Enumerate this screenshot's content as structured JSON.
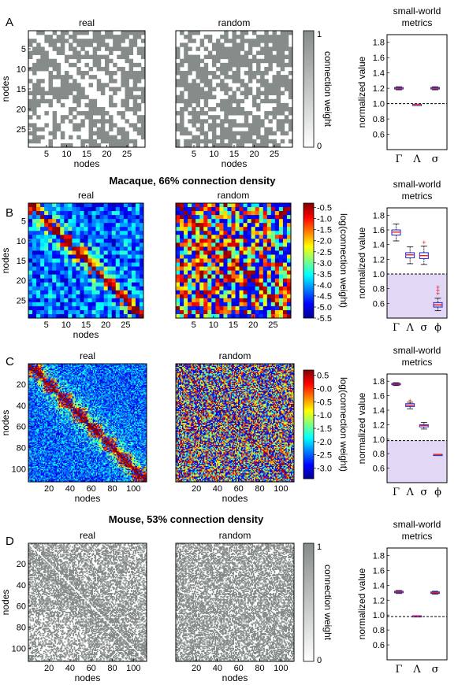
{
  "figure": {
    "section_titles": {
      "macaque": "Macaque, 66% connection density",
      "mouse": "Mouse, 53% connection density"
    }
  },
  "chart_data": [
    {
      "panel": "A",
      "type": "heatmap",
      "subtitle": "real",
      "xlabel": "nodes",
      "ylabel": "nodes",
      "n": 29,
      "xticks": [
        5,
        10,
        15,
        20,
        25
      ],
      "yticks": [
        5,
        10,
        15,
        20,
        25
      ],
      "colorbar": {
        "label": "connection weight",
        "ticks": [
          "1",
          "0"
        ],
        "colormap": "gray-binary"
      },
      "density": 0.66,
      "values_note": "binary adjacency (1 = connection, 0 = none)"
    },
    {
      "panel": "A",
      "type": "heatmap",
      "subtitle": "random",
      "xlabel": "",
      "ylabel": "",
      "n": 29,
      "density": 0.66,
      "colormap": "gray-binary"
    },
    {
      "panel": "A",
      "type": "boxplot",
      "title": "small-world metrics",
      "ylabel": "normalized value",
      "ylim": [
        0.4,
        1.9
      ],
      "yticks": [
        "0.6",
        "0.8",
        "1.0",
        "1.2",
        "1.4",
        "1.6",
        "1.8"
      ],
      "reference_line": 1.0,
      "categories": [
        "Γ",
        "Λ",
        "σ"
      ],
      "boxes": [
        {
          "median": 1.2,
          "q1": 1.19,
          "q3": 1.21,
          "whisker_low": 1.18,
          "whisker_high": 1.22
        },
        {
          "median": 0.99,
          "q1": 0.99,
          "q3": 0.99,
          "whisker_low": 0.99,
          "whisker_high": 0.99
        },
        {
          "median": 1.2,
          "q1": 1.19,
          "q3": 1.21,
          "whisker_low": 1.18,
          "whisker_high": 1.22
        }
      ]
    },
    {
      "panel": "B",
      "type": "heatmap",
      "subtitle": "real",
      "xlabel": "nodes",
      "ylabel": "nodes",
      "n": 29,
      "xticks": [
        5,
        10,
        15,
        20,
        25
      ],
      "yticks": [
        5,
        10,
        15,
        20,
        25
      ],
      "colorbar": {
        "label": "log(connection weight)",
        "ticks": [
          "-0.5",
          "-1.0",
          "-1.5",
          "-2.0",
          "-2.5",
          "-3.0",
          "-3.5",
          "-4.0",
          "-4.5",
          "-5.0",
          "-5.5"
        ],
        "range": [
          -5.5,
          -0.3
        ],
        "colormap": "jet"
      }
    },
    {
      "panel": "B",
      "type": "heatmap",
      "subtitle": "random",
      "n": 29,
      "range": [
        -5.5,
        -0.3
      ],
      "colormap": "jet"
    },
    {
      "panel": "B",
      "type": "boxplot",
      "title": "small-world metrics",
      "ylabel": "normalized value",
      "ylim": [
        0.4,
        1.9
      ],
      "yticks": [
        "0.6",
        "0.8",
        "1.0",
        "1.2",
        "1.4",
        "1.6",
        "1.8"
      ],
      "reference_line": 1.0,
      "shaded_below": 1.0,
      "categories": [
        "Γ",
        "Λ",
        "σ",
        "ϕ"
      ],
      "boxes": [
        {
          "median": 1.57,
          "q1": 1.53,
          "q3": 1.6,
          "whisker_low": 1.45,
          "whisker_high": 1.68
        },
        {
          "median": 1.26,
          "q1": 1.22,
          "q3": 1.29,
          "whisker_low": 1.14,
          "whisker_high": 1.37,
          "outliers": []
        },
        {
          "median": 1.25,
          "q1": 1.21,
          "q3": 1.29,
          "whisker_low": 1.13,
          "whisker_high": 1.38,
          "outliers": [
            1.43
          ]
        },
        {
          "median": 0.58,
          "q1": 0.55,
          "q3": 0.61,
          "whisker_low": 0.5,
          "whisker_high": 0.67,
          "outliers": [
            0.82,
            0.78,
            0.73
          ]
        }
      ]
    },
    {
      "panel": "C",
      "type": "heatmap",
      "subtitle": "real",
      "xlabel": "nodes",
      "ylabel": "nodes",
      "n": 112,
      "xticks": [
        20,
        40,
        60,
        80,
        100
      ],
      "yticks": [
        20,
        40,
        60,
        80,
        100
      ],
      "colorbar": {
        "label": "log(connection weight)",
        "ticks": [
          "0.5",
          "-0.0",
          "-0.5",
          "-1.0",
          "-1.5",
          "-2.0",
          "-2.5",
          "-3.0"
        ],
        "range": [
          -3.4,
          0.7
        ],
        "colormap": "jet"
      }
    },
    {
      "panel": "C",
      "type": "heatmap",
      "subtitle": "random",
      "n": 112,
      "xticks": [
        20,
        40,
        60,
        80,
        100
      ],
      "range": [
        -3.4,
        0.7
      ],
      "colormap": "jet"
    },
    {
      "panel": "C",
      "type": "boxplot",
      "title": "small-world metrics",
      "ylabel": "normalized value",
      "ylim": [
        0.4,
        1.9
      ],
      "yticks": [
        "0.6",
        "0.8",
        "1.0",
        "1.2",
        "1.4",
        "1.6",
        "1.8"
      ],
      "reference_line": 0.98,
      "shaded_below": 0.98,
      "categories": [
        "Γ",
        "Λ",
        "σ",
        "ϕ"
      ],
      "boxes": [
        {
          "median": 1.76,
          "q1": 1.75,
          "q3": 1.77,
          "whisker_low": 1.74,
          "whisker_high": 1.78
        },
        {
          "median": 1.47,
          "q1": 1.45,
          "q3": 1.49,
          "whisker_low": 1.42,
          "whisker_high": 1.51,
          "outliers": [
            1.53
          ]
        },
        {
          "median": 1.19,
          "q1": 1.17,
          "q3": 1.2,
          "whisker_low": 1.14,
          "whisker_high": 1.23
        },
        {
          "median": 0.79,
          "q1": 0.79,
          "q3": 0.79,
          "whisker_low": 0.79,
          "whisker_high": 0.79
        }
      ]
    },
    {
      "panel": "D",
      "type": "heatmap",
      "subtitle": "real",
      "xlabel": "nodes",
      "ylabel": "nodes",
      "n": 112,
      "xticks": [
        20,
        40,
        60,
        80,
        100
      ],
      "yticks": [
        20,
        40,
        60,
        80,
        100
      ],
      "colorbar": {
        "label": "connection weight",
        "ticks": [
          "1",
          "0"
        ],
        "colormap": "gray-binary"
      },
      "density": 0.53
    },
    {
      "panel": "D",
      "type": "heatmap",
      "subtitle": "random",
      "n": 112,
      "xticks": [
        20,
        40,
        60,
        80,
        100
      ],
      "density": 0.53,
      "colormap": "gray-binary"
    },
    {
      "panel": "D",
      "type": "boxplot",
      "title": "small-world metrics",
      "ylabel": "normalized value",
      "ylim": [
        0.4,
        1.9
      ],
      "yticks": [
        "0.6",
        "0.8",
        "1.0",
        "1.2",
        "1.4",
        "1.6",
        "1.8"
      ],
      "reference_line": 0.98,
      "categories": [
        "Γ",
        "Λ",
        "σ"
      ],
      "boxes": [
        {
          "median": 1.31,
          "q1": 1.3,
          "q3": 1.32,
          "whisker_low": 1.29,
          "whisker_high": 1.33
        },
        {
          "median": 0.99,
          "q1": 0.99,
          "q3": 0.99,
          "whisker_low": 0.99,
          "whisker_high": 0.99
        },
        {
          "median": 1.3,
          "q1": 1.29,
          "q3": 1.31,
          "whisker_low": 1.28,
          "whisker_high": 1.32
        }
      ]
    }
  ],
  "panel_letters": [
    "A",
    "B",
    "C",
    "D"
  ],
  "colors": {
    "grey_cell": "#858c8a",
    "box_edge": "#1a22d6",
    "median_line": "#e51c1c",
    "shade": "#e2d7f5",
    "ref_line": "#000000"
  }
}
